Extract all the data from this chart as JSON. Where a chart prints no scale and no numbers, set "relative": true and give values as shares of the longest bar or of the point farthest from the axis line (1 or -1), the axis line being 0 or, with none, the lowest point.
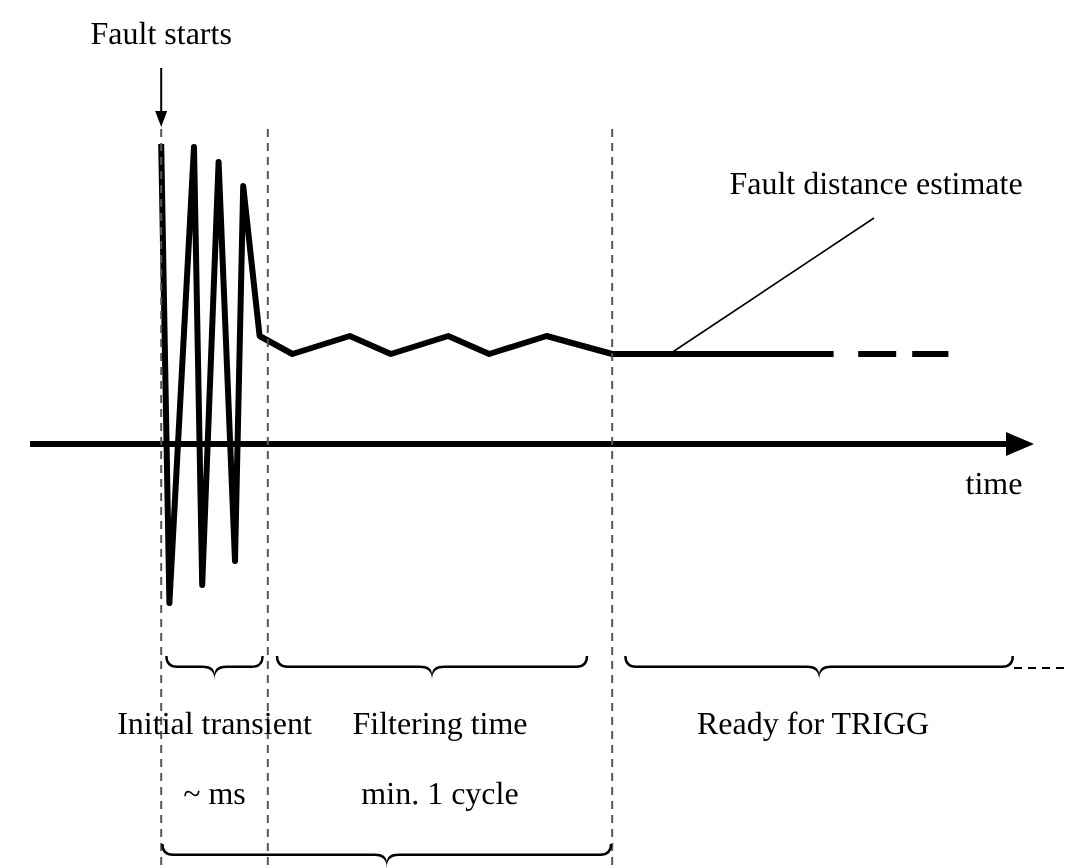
{
  "chart_data": {
    "type": "line",
    "relative": true,
    "grid": "x",
    "xlabel": "time",
    "marker": "none",
    "line_style": "solid",
    "categories": [
      null,
      null,
      null,
      null,
      null,
      null,
      null,
      null,
      null,
      null,
      null,
      null,
      null,
      null,
      null,
      null,
      null,
      null,
      null,
      null,
      null,
      null,
      null,
      null,
      null,
      null,
      null,
      null,
      null,
      null,
      null,
      null,
      null,
      null,
      null,
      null,
      null,
      null,
      null,
      null,
      null,
      null,
      null,
      null,
      null,
      null,
      null,
      null,
      null,
      null,
      null,
      null,
      null,
      null,
      null,
      null,
      null,
      null,
      null,
      null,
      null,
      null,
      null,
      null,
      null,
      null,
      null,
      null,
      null,
      null,
      null,
      null,
      null,
      null,
      null,
      null,
      null,
      null,
      null,
      null,
      null,
      null,
      null,
      null,
      null,
      null,
      null,
      null,
      null,
      null,
      null,
      null,
      null,
      null,
      null,
      null,
      null,
      null,
      null,
      null,
      null,
      null,
      null,
      null,
      null,
      null,
      null,
      null,
      null,
      null,
      null,
      null,
      null,
      null,
      null,
      null,
      null,
      null,
      null,
      null,
      null
    ],
    "series": [
      {
        "color": "#000000",
        "values": [
          null,
          null,
          null,
          null,
          null,
          null,
          null,
          null,
          null,
          null,
          null,
          null,
          null,
          null,
          null,
          null,
          1.0,
          -0.53,
          null,
          null,
          0.99,
          -0.47,
          null,
          0.94,
          null,
          -0.39,
          0.86,
          null,
          0.36,
          null,
          null,
          null,
          0.3,
          null,
          null,
          null,
          null,
          null,
          null,
          0.36,
          null,
          null,
          null,
          null,
          0.3,
          null,
          null,
          null,
          null,
          null,
          null,
          0.36,
          null,
          null,
          null,
          null,
          0.3,
          null,
          null,
          null,
          null,
          null,
          null,
          0.36,
          null,
          null,
          null,
          null,
          null,
          null,
          null,
          0.3,
          null,
          null,
          null,
          null,
          null,
          null,
          null,
          null,
          null,
          null,
          null,
          null,
          null,
          null,
          null,
          null,
          null,
          null,
          null,
          null,
          null,
          null,
          null,
          null,
          null,
          null,
          0.3,
          null,
          null,
          null,
          null,
          null,
          null,
          null,
          null,
          null,
          null,
          null,
          null,
          null,
          null,
          null,
          null,
          null,
          null,
          null,
          null,
          null,
          null
        ]
      },
      {
        "color": "#000000",
        "line_style": "dashed",
        "values": [
          null,
          null,
          null,
          null,
          null,
          null,
          null,
          null,
          null,
          null,
          null,
          null,
          null,
          null,
          null,
          null,
          null,
          null,
          null,
          null,
          null,
          null,
          null,
          null,
          null,
          null,
          null,
          null,
          null,
          null,
          null,
          null,
          null,
          null,
          null,
          null,
          null,
          null,
          null,
          null,
          null,
          null,
          null,
          null,
          null,
          null,
          null,
          null,
          null,
          null,
          null,
          null,
          null,
          null,
          null,
          null,
          null,
          null,
          null,
          null,
          null,
          null,
          null,
          null,
          null,
          null,
          null,
          null,
          null,
          null,
          null,
          null,
          null,
          null,
          null,
          null,
          null,
          null,
          null,
          null,
          null,
          null,
          null,
          null,
          null,
          null,
          null,
          null,
          null,
          null,
          null,
          null,
          null,
          null,
          null,
          null,
          null,
          null,
          null,
          null,
          null,
          0.3,
          null,
          null,
          null,
          null,
          null,
          null,
          null,
          null,
          null,
          null,
          0.3,
          null,
          null,
          null,
          null,
          null,
          null,
          null,
          null
        ]
      }
    ],
    "annotations": [
      "Fault starts",
      "Fault distance estimate",
      "Initial transient",
      "~ ms",
      "Filtering time",
      "min. 1 cycle",
      "Ready for TRIGG"
    ]
  }
}
